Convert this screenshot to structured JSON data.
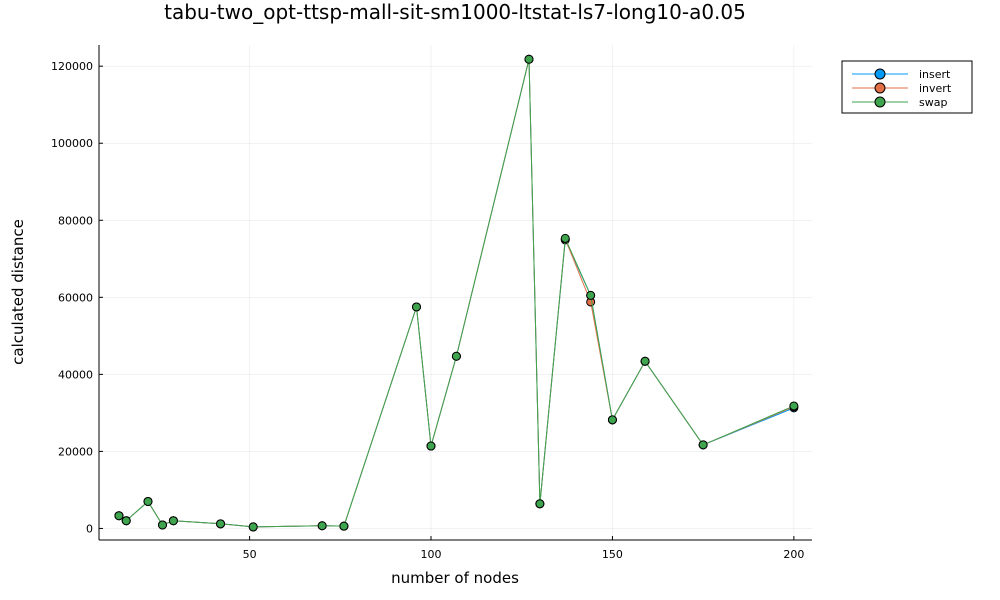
{
  "chart_data": {
    "type": "line",
    "title": "tabu-two_opt-ttsp-mall-sit-sm1000-ltstat-ls7-long10-a0.05",
    "xlabel": "number of nodes",
    "ylabel": "calculated distance",
    "xlim": [
      8.5,
      205
    ],
    "ylim": [
      -3000,
      125500
    ],
    "xticks": [
      50,
      100,
      150,
      200
    ],
    "yticks": [
      0,
      20000,
      40000,
      60000,
      80000,
      100000,
      120000
    ],
    "grid": true,
    "legend_position": "top-right",
    "x": [
      14,
      16,
      22,
      26,
      29,
      42,
      51,
      70,
      76,
      96,
      100,
      107,
      127,
      130,
      137,
      144,
      150,
      159,
      175,
      200
    ],
    "series": [
      {
        "name": "insert",
        "color": "#009AFA",
        "values": [
          3300,
          2000,
          7000,
          900,
          2000,
          1200,
          400,
          700,
          600,
          57500,
          21400,
          44700,
          121800,
          6400,
          74900,
          60500,
          28200,
          43400,
          21700,
          31300
        ]
      },
      {
        "name": "invert",
        "color": "#E36F47",
        "values": [
          3300,
          2000,
          7000,
          900,
          2000,
          1200,
          400,
          700,
          600,
          57500,
          21400,
          44700,
          121800,
          6400,
          75100,
          58800,
          28200,
          43400,
          21700,
          31600
        ]
      },
      {
        "name": "swap",
        "color": "#3EA44E",
        "values": [
          3300,
          2000,
          7000,
          900,
          2000,
          1200,
          400,
          700,
          600,
          57500,
          21400,
          44700,
          121800,
          6400,
          75300,
          60500,
          28200,
          43400,
          21700,
          31800
        ]
      }
    ]
  }
}
